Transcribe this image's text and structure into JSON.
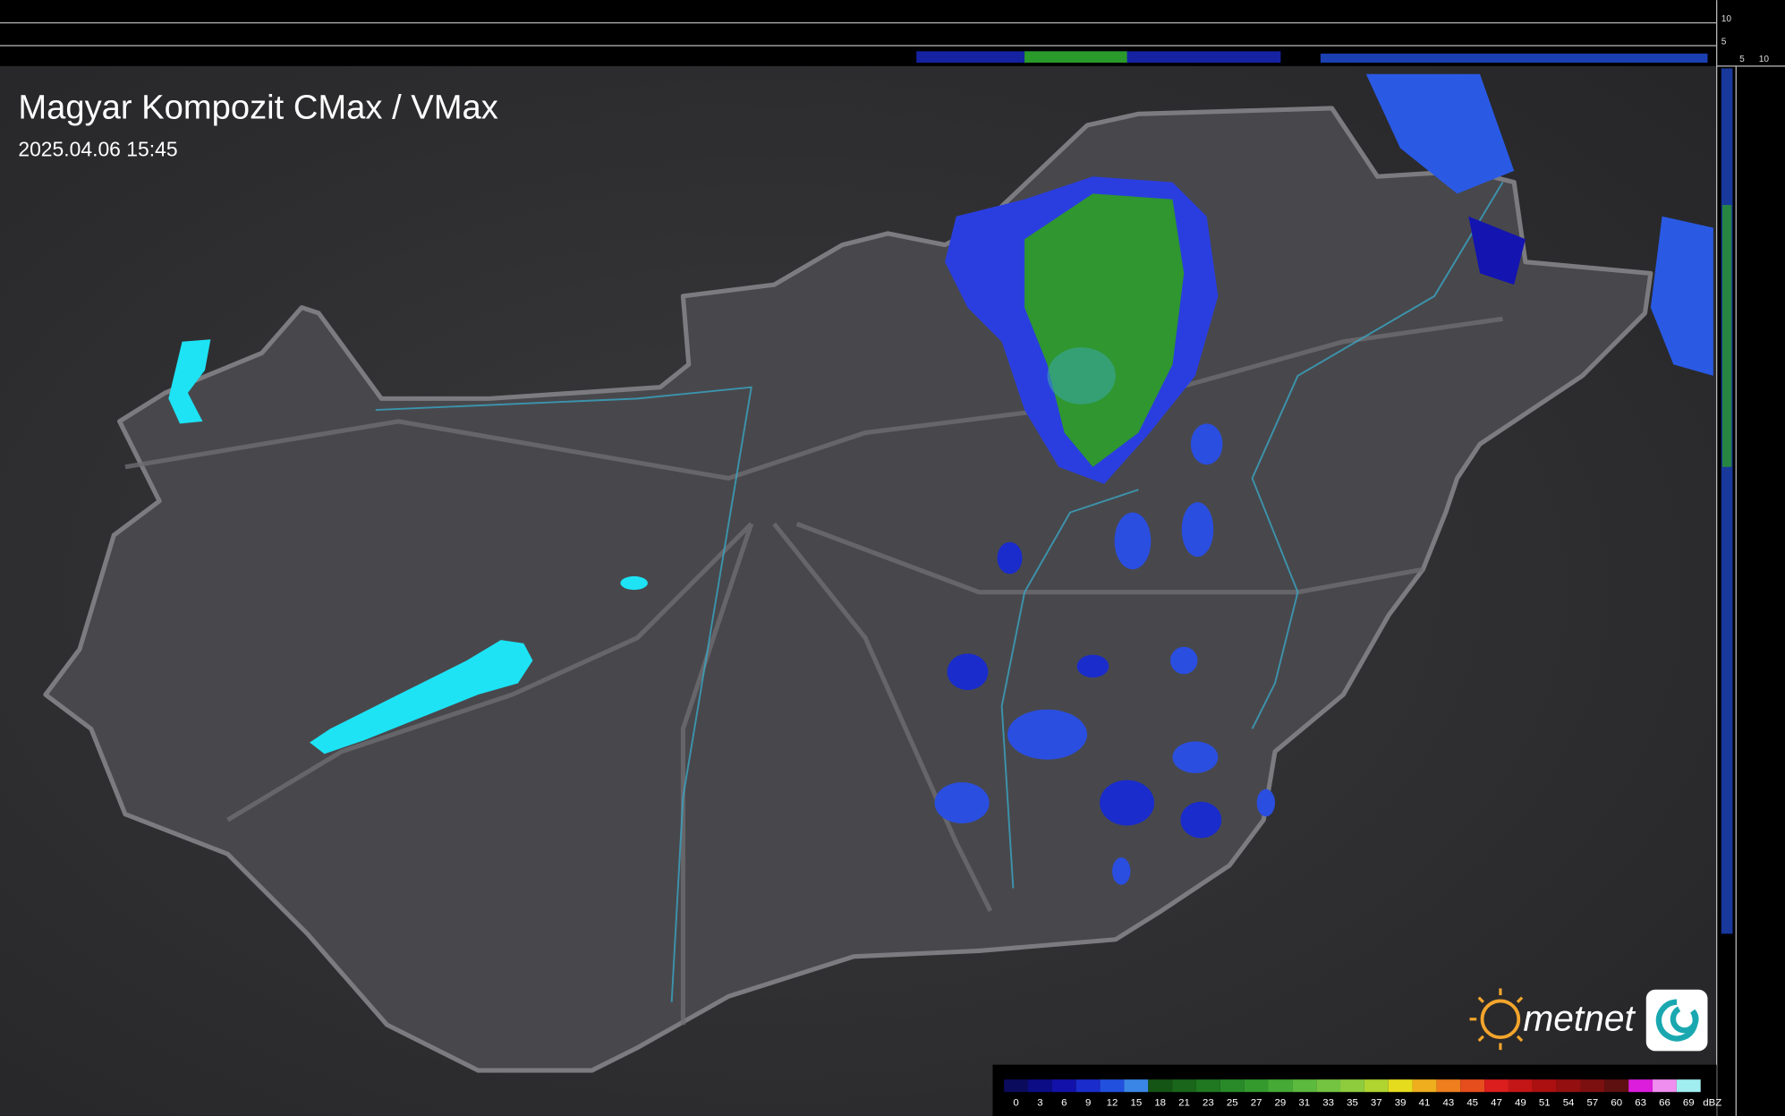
{
  "header": {
    "title": "Magyar Kompozit CMax / VMax",
    "timestamp": "2025.04.06 15:45"
  },
  "profile_scale": {
    "vertical": [
      "10",
      "5"
    ],
    "horizontal": [
      "5",
      "10"
    ]
  },
  "logo": "metnet",
  "legend": {
    "unit": "dBZ",
    "stops": [
      {
        "value": 0,
        "color": "#0b0b5e"
      },
      {
        "value": 3,
        "color": "#0c0c86"
      },
      {
        "value": 6,
        "color": "#1212aa"
      },
      {
        "value": 9,
        "color": "#1a2ccc"
      },
      {
        "value": 12,
        "color": "#2250de"
      },
      {
        "value": 15,
        "color": "#3a86e6"
      },
      {
        "value": 18,
        "color": "#145414"
      },
      {
        "value": 21,
        "color": "#1a661a"
      },
      {
        "value": 23,
        "color": "#207820"
      },
      {
        "value": 25,
        "color": "#288a28"
      },
      {
        "value": 27,
        "color": "#349a2e"
      },
      {
        "value": 29,
        "color": "#46aa36"
      },
      {
        "value": 31,
        "color": "#5cba3e"
      },
      {
        "value": 33,
        "color": "#74c442"
      },
      {
        "value": 35,
        "color": "#8ecc3e"
      },
      {
        "value": 37,
        "color": "#b0d430"
      },
      {
        "value": 39,
        "color": "#e6dc1e"
      },
      {
        "value": 41,
        "color": "#eeae1e"
      },
      {
        "value": 43,
        "color": "#ee7e1e"
      },
      {
        "value": 45,
        "color": "#e64e1e"
      },
      {
        "value": 47,
        "color": "#dc1e1e"
      },
      {
        "value": 49,
        "color": "#c41616"
      },
      {
        "value": 51,
        "color": "#ac1010"
      },
      {
        "value": 54,
        "color": "#941010"
      },
      {
        "value": 57,
        "color": "#7c1010"
      },
      {
        "value": 60,
        "color": "#5e1010"
      },
      {
        "value": 63,
        "color": "#dc1edc"
      },
      {
        "value": 66,
        "color": "#f08ef0"
      },
      {
        "value": 69,
        "color": "#a0eef0"
      }
    ]
  }
}
